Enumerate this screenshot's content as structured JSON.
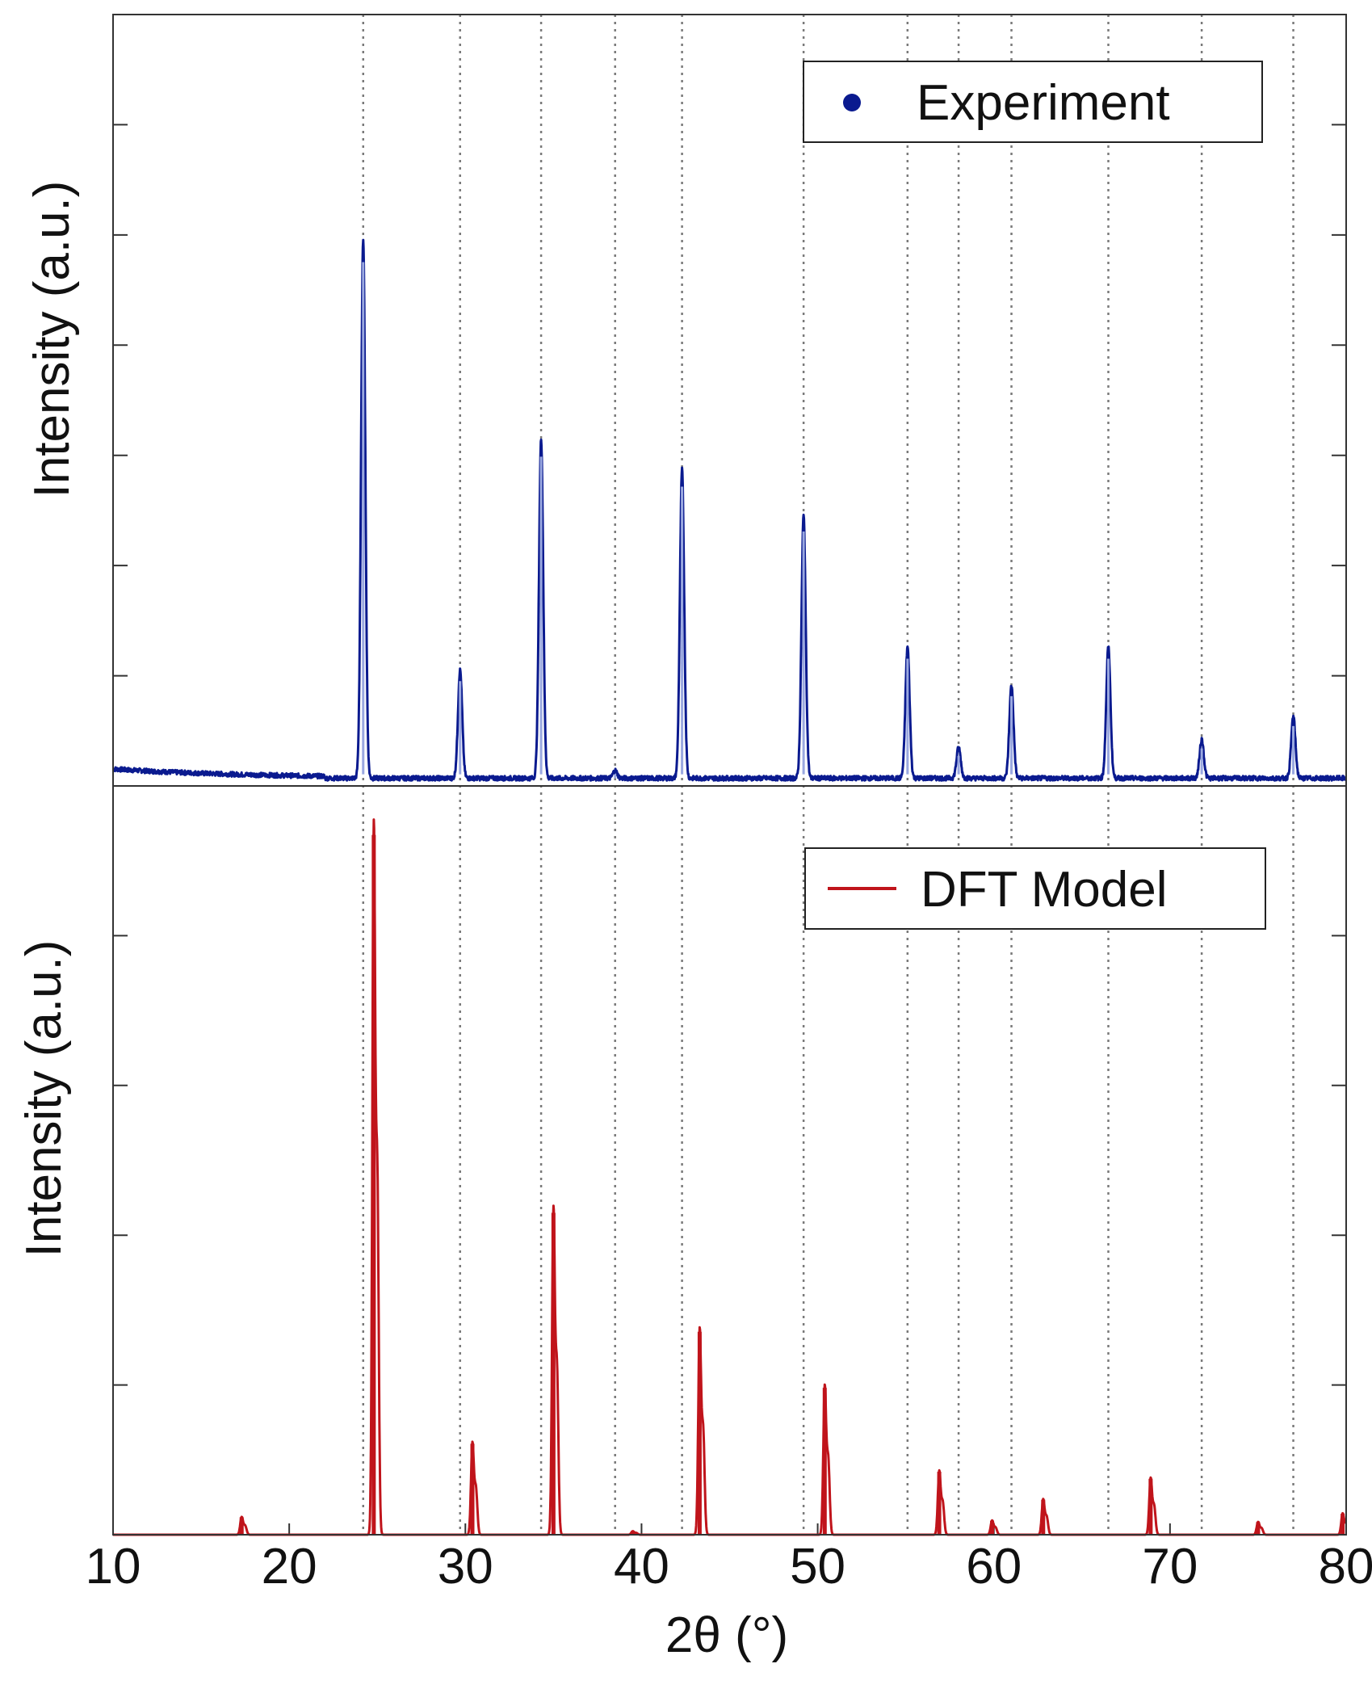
{
  "chart_data": [
    {
      "type": "line",
      "panel": "top",
      "ylabel": "Intensity (a.u.)",
      "legend": {
        "label": "Experiment",
        "marker": "dot",
        "placement": "top-right"
      },
      "xlim": [
        10,
        80
      ],
      "ylim": [
        0,
        1
      ],
      "baseline": 0.01,
      "color": "#0a1a8f",
      "peak_color": "#9aa8e0",
      "peaks": [
        {
          "x": 24.2,
          "y": 0.7
        },
        {
          "x": 29.7,
          "y": 0.14
        },
        {
          "x": 34.3,
          "y": 0.44
        },
        {
          "x": 38.5,
          "y": 0.01
        },
        {
          "x": 42.3,
          "y": 0.4
        },
        {
          "x": 49.2,
          "y": 0.34
        },
        {
          "x": 55.1,
          "y": 0.17
        },
        {
          "x": 58.0,
          "y": 0.04
        },
        {
          "x": 61.0,
          "y": 0.12
        },
        {
          "x": 66.5,
          "y": 0.17
        },
        {
          "x": 71.8,
          "y": 0.05
        },
        {
          "x": 77.0,
          "y": 0.08
        }
      ]
    },
    {
      "type": "line",
      "panel": "bottom",
      "ylabel": "Intensity (a.u.)",
      "xlabel": "2θ (°)",
      "legend": {
        "label": "DFT Model",
        "marker": "line",
        "placement": "top-right"
      },
      "xlim": [
        10,
        80
      ],
      "ylim": [
        0,
        1.07
      ],
      "color": "#c0141b",
      "peaks": [
        {
          "x": 17.3,
          "y": 0.025
        },
        {
          "x": 24.8,
          "y": 1.0
        },
        {
          "x": 30.4,
          "y": 0.13
        },
        {
          "x": 35.0,
          "y": 0.46
        },
        {
          "x": 39.5,
          "y": 0.005
        },
        {
          "x": 43.3,
          "y": 0.29
        },
        {
          "x": 50.4,
          "y": 0.21
        },
        {
          "x": 56.9,
          "y": 0.09
        },
        {
          "x": 59.9,
          "y": 0.02
        },
        {
          "x": 62.8,
          "y": 0.05
        },
        {
          "x": 68.9,
          "y": 0.08
        },
        {
          "x": 75.0,
          "y": 0.018
        },
        {
          "x": 79.8,
          "y": 0.03
        }
      ]
    }
  ],
  "x_ticks": [
    10,
    20,
    30,
    40,
    50,
    60,
    70,
    80
  ],
  "reference_lines_x": [
    24.2,
    29.7,
    34.3,
    38.5,
    42.3,
    49.2,
    55.1,
    58.0,
    61.0,
    66.5,
    71.8,
    77.0
  ],
  "grid": false
}
